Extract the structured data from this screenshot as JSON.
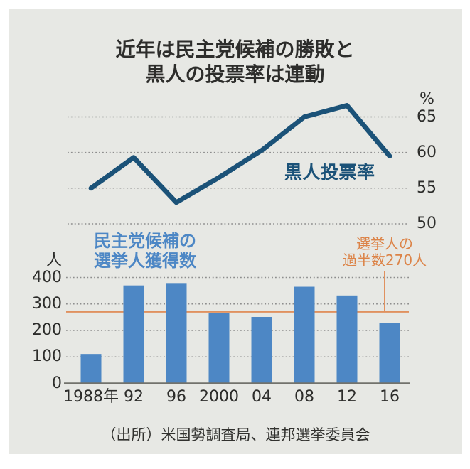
{
  "title": {
    "line1": "近年は民主党候補の勝敗と",
    "line2": "黒人の投票率は連動"
  },
  "source": "（出所）米国勢調査局、連邦選挙委員会",
  "colors": {
    "panel_bg": "#e7e8e4",
    "line_navy": "#1b5278",
    "bar_blue": "#4d87c5",
    "threshold_orange": "#e0915f",
    "threshold_text_orange": "#dc8347",
    "grid_gray": "#8d8d8d",
    "axis_gray": "#72726c",
    "text_dark": "#2d2d2b"
  },
  "chart_data": [
    {
      "type": "line",
      "name": "black-voter-turnout",
      "title": "黒人投票率",
      "unit": "%",
      "categories": [
        "1988年",
        "92",
        "96",
        "2000",
        "04",
        "08",
        "12",
        "16"
      ],
      "values": [
        55,
        59.3,
        53,
        56.5,
        60.3,
        65,
        66.6,
        59.5
      ],
      "yticks": [
        65,
        60,
        55,
        50
      ],
      "ylim": [
        50,
        68
      ],
      "grid": "dotted",
      "legend_position": "inside-right"
    },
    {
      "type": "bar",
      "name": "democratic-electoral-votes",
      "title_lines": [
        "民主党候補の",
        "選挙人獲得数"
      ],
      "unit": "人",
      "categories": [
        "1988年",
        "92",
        "96",
        "2000",
        "04",
        "08",
        "12",
        "16"
      ],
      "values": [
        111,
        370,
        379,
        266,
        251,
        365,
        332,
        227
      ],
      "yticks": [
        400,
        300,
        200,
        100,
        0
      ],
      "ylim": [
        0,
        400
      ],
      "grid": "dotted",
      "threshold": {
        "value": 270,
        "label_lines": [
          "選挙人の",
          "過半数270人"
        ]
      }
    }
  ]
}
